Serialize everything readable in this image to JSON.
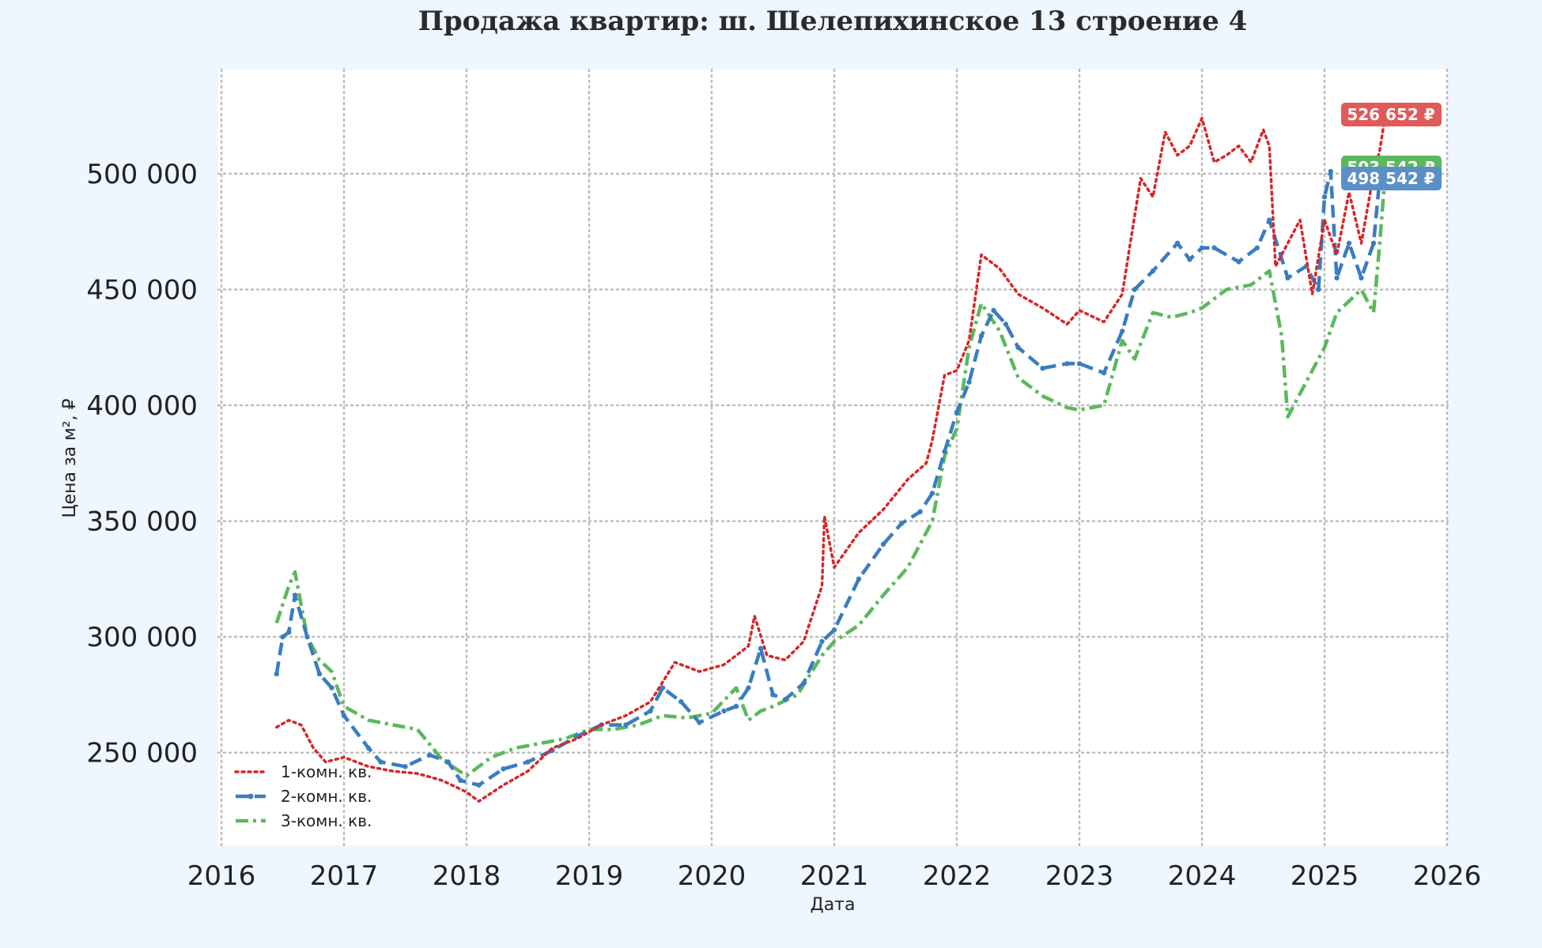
{
  "chart_data": {
    "type": "line",
    "title": "Продажа квартир: ш. Шелепихинское 13 строение 4",
    "xlabel": "Дата",
    "ylabel": "Цена за м², ₽",
    "xlim": [
      2016.0,
      2026.0
    ],
    "ylim": [
      210000,
      545000
    ],
    "x_ticks": [
      2016,
      2017,
      2018,
      2019,
      2020,
      2021,
      2022,
      2023,
      2024,
      2025,
      2026
    ],
    "x_tick_labels": [
      "2016",
      "2017",
      "2018",
      "2019",
      "2020",
      "2021",
      "2022",
      "2023",
      "2024",
      "2025",
      "2026"
    ],
    "y_ticks": [
      250000,
      300000,
      350000,
      400000,
      450000,
      500000
    ],
    "y_tick_labels": [
      "250 000",
      "300 000",
      "350 000",
      "400 000",
      "450 000",
      "500 000"
    ],
    "grid": true,
    "legend_position": "bottom-left",
    "series": [
      {
        "name": "1-комн. кв.",
        "color": "#d62728",
        "style": "dotted",
        "x": [
          2016.45,
          2016.55,
          2016.65,
          2016.75,
          2016.85,
          2017.0,
          2017.2,
          2017.4,
          2017.6,
          2017.8,
          2018.0,
          2018.1,
          2018.3,
          2018.5,
          2018.7,
          2018.9,
          2019.1,
          2019.3,
          2019.5,
          2019.7,
          2019.9,
          2020.1,
          2020.3,
          2020.35,
          2020.45,
          2020.6,
          2020.75,
          2020.9,
          2020.92,
          2021.0,
          2021.2,
          2021.4,
          2021.6,
          2021.75,
          2021.8,
          2021.9,
          2022.0,
          2022.1,
          2022.2,
          2022.35,
          2022.5,
          2022.7,
          2022.9,
          2023.0,
          2023.2,
          2023.35,
          2023.4,
          2023.5,
          2023.6,
          2023.7,
          2023.8,
          2023.9,
          2024.0,
          2024.1,
          2024.2,
          2024.3,
          2024.4,
          2024.5,
          2024.55,
          2024.6,
          2024.7,
          2024.8,
          2024.9,
          2025.0,
          2025.1,
          2025.2,
          2025.3,
          2025.4,
          2025.45,
          2025.5
        ],
        "values": [
          261000,
          264000,
          262000,
          252000,
          246000,
          248000,
          244000,
          242000,
          241000,
          238000,
          233000,
          229000,
          236000,
          242000,
          252000,
          256000,
          262000,
          266000,
          272000,
          289000,
          285000,
          288000,
          296000,
          309000,
          292000,
          290000,
          298000,
          322000,
          352000,
          330000,
          345000,
          355000,
          368000,
          375000,
          385000,
          413000,
          415000,
          428000,
          465000,
          459000,
          448000,
          442000,
          435000,
          441000,
          436000,
          448000,
          465000,
          498000,
          490000,
          518000,
          508000,
          512000,
          524000,
          505000,
          508000,
          512000,
          505000,
          519000,
          512000,
          460000,
          470000,
          480000,
          448000,
          480000,
          465000,
          492000,
          470000,
          500000,
          510000,
          526652
        ]
      },
      {
        "name": "2-комн. кв.",
        "color": "#3a7dbf",
        "style": "dashed-markers",
        "x": [
          2016.45,
          2016.5,
          2016.55,
          2016.6,
          2016.7,
          2016.8,
          2016.9,
          2017.0,
          2017.2,
          2017.3,
          2017.5,
          2017.7,
          2017.85,
          2017.95,
          2018.1,
          2018.3,
          2018.5,
          2018.7,
          2018.9,
          2019.1,
          2019.3,
          2019.5,
          2019.6,
          2019.75,
          2019.9,
          2020.1,
          2020.2,
          2020.3,
          2020.4,
          2020.5,
          2020.6,
          2020.75,
          2020.9,
          2021.0,
          2021.2,
          2021.4,
          2021.55,
          2021.7,
          2021.8,
          2021.9,
          2022.0,
          2022.1,
          2022.2,
          2022.3,
          2022.4,
          2022.5,
          2022.7,
          2022.9,
          2023.0,
          2023.2,
          2023.35,
          2023.45,
          2023.6,
          2023.8,
          2023.9,
          2024.0,
          2024.1,
          2024.3,
          2024.45,
          2024.55,
          2024.7,
          2024.85,
          2024.95,
          2025.0,
          2025.05,
          2025.1,
          2025.2,
          2025.3,
          2025.4,
          2025.45,
          2025.5
        ],
        "values": [
          284000,
          300000,
          302000,
          318000,
          300000,
          284000,
          278000,
          266000,
          252000,
          246000,
          244000,
          249000,
          246000,
          238000,
          236000,
          243000,
          246000,
          251000,
          257000,
          262000,
          262000,
          268000,
          278000,
          272000,
          263000,
          268000,
          270000,
          278000,
          295000,
          275000,
          273000,
          280000,
          298000,
          303000,
          325000,
          340000,
          349000,
          354000,
          362000,
          380000,
          397000,
          410000,
          430000,
          441000,
          435000,
          425000,
          416000,
          418000,
          418000,
          414000,
          432000,
          450000,
          458000,
          470000,
          463000,
          468000,
          468000,
          462000,
          468000,
          480000,
          455000,
          460000,
          450000,
          490000,
          501000,
          455000,
          470000,
          455000,
          470000,
          498000,
          498542
        ]
      },
      {
        "name": "3-комн. кв.",
        "color": "#5cb85c",
        "style": "dash-dot",
        "x": [
          2016.45,
          2016.55,
          2016.6,
          2016.7,
          2016.8,
          2016.9,
          2017.0,
          2017.2,
          2017.4,
          2017.6,
          2017.8,
          2018.0,
          2018.2,
          2018.4,
          2018.6,
          2018.8,
          2019.0,
          2019.2,
          2019.4,
          2019.6,
          2019.8,
          2020.0,
          2020.2,
          2020.3,
          2020.4,
          2020.5,
          2020.7,
          2020.9,
          2021.0,
          2021.2,
          2021.4,
          2021.6,
          2021.8,
          2021.9,
          2022.0,
          2022.1,
          2022.2,
          2022.35,
          2022.5,
          2022.7,
          2022.9,
          2023.0,
          2023.2,
          2023.35,
          2023.45,
          2023.6,
          2023.75,
          2023.9,
          2024.0,
          2024.2,
          2024.4,
          2024.55,
          2024.65,
          2024.7,
          2024.85,
          2025.0,
          2025.1,
          2025.2,
          2025.3,
          2025.4,
          2025.45,
          2025.5
        ],
        "values": [
          306000,
          322000,
          328000,
          300000,
          290000,
          285000,
          270000,
          264000,
          262000,
          260000,
          247000,
          240000,
          248000,
          252000,
          254000,
          256000,
          260000,
          260000,
          262000,
          266000,
          265000,
          267000,
          278000,
          264000,
          268000,
          270000,
          275000,
          292000,
          298000,
          305000,
          318000,
          330000,
          350000,
          378000,
          390000,
          425000,
          444000,
          432000,
          412000,
          404000,
          399000,
          398000,
          400000,
          428000,
          420000,
          440000,
          438000,
          440000,
          442000,
          450000,
          452000,
          458000,
          430000,
          395000,
          410000,
          425000,
          440000,
          445000,
          450000,
          440000,
          470000,
          503542
        ]
      }
    ],
    "end_labels": [
      {
        "series": "1-комн. кв.",
        "text": "526 652 ₽",
        "value": 526652,
        "color": "#e05a5a"
      },
      {
        "series": "3-комн. кв.",
        "text": "503 542 ₽",
        "value": 503542,
        "color": "#5cb85c"
      },
      {
        "series": "2-комн. кв.",
        "text": "498 542 ₽",
        "value": 498542,
        "color": "#5a8fc7"
      }
    ]
  }
}
